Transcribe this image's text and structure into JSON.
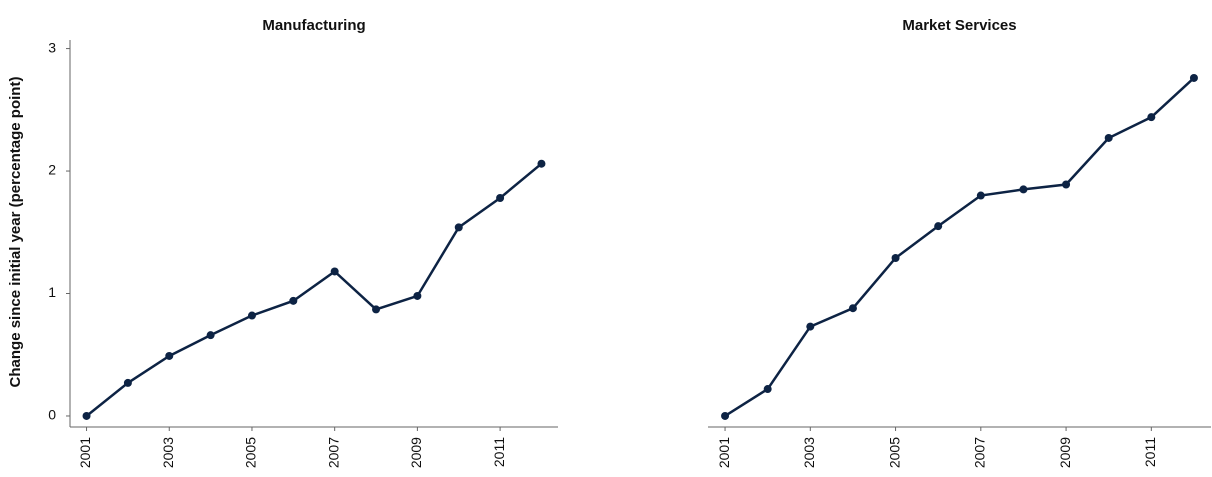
{
  "chart_data": [
    {
      "type": "line",
      "title": "Manufacturing",
      "ylabel": "Change since initial year (percentage point)",
      "x": [
        2001,
        2002,
        2003,
        2004,
        2005,
        2006,
        2007,
        2008,
        2009,
        2010,
        2011,
        2012
      ],
      "values": [
        0,
        0.27,
        0.49,
        0.66,
        0.82,
        0.94,
        1.18,
        0.87,
        0.98,
        1.54,
        1.78,
        2.06
      ],
      "color": "#0d2344",
      "xlim": [
        2000.6,
        2012.4
      ],
      "xticks": [
        2001,
        2003,
        2005,
        2007,
        2009,
        2011
      ],
      "ylim": [
        -0.09,
        3.07
      ],
      "yticks": [
        0,
        1,
        2,
        3
      ]
    },
    {
      "type": "line",
      "title": "Market Services",
      "x": [
        2001,
        2002,
        2003,
        2004,
        2005,
        2006,
        2007,
        2008,
        2009,
        2010,
        2011,
        2012
      ],
      "values": [
        0,
        0.22,
        0.73,
        0.88,
        1.29,
        1.55,
        1.8,
        1.85,
        1.89,
        2.27,
        2.44,
        2.76
      ],
      "color": "#0d2344",
      "xlim": [
        2000.6,
        2012.4
      ],
      "xticks": [
        2001,
        2003,
        2005,
        2007,
        2009,
        2011
      ],
      "ylim": [
        -0.09,
        3.07
      ]
    }
  ]
}
